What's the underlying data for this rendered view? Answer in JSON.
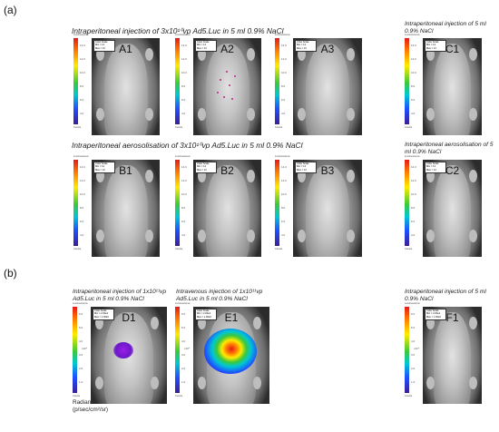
{
  "sections": {
    "a": "(a)",
    "b": "(b)"
  },
  "captions": {
    "a_row1": "Intraperitoneal injection of 3x10¹⁰vp Ad5.Luc in 5 ml 0.9% NaCl",
    "a_c1": "Intraperitoneal injection of 5 ml 0.9% NaCl",
    "a_row2": "Intraperitoneal aerosolisation of 3x10¹⁰vp Ad5.Luc in 5 ml 0.9% NaCl",
    "a_c2": "Intraperitoneal aerosolisation of 5 ml 0.9% NaCl",
    "b_d1": "Intraperitoneal injection of 1x10¹¹vp Ad5.Luc in 5 ml 0.9% NaCl",
    "b_e1": "Intravenous injection of 1x10¹¹vp Ad5.Luc in 5 ml 0.9% NaCl",
    "b_f1": "Intraperitoneal injection of 5 ml 0.9% NaCl"
  },
  "panels": {
    "A1": {
      "label": "A1"
    },
    "A2": {
      "label": "A2"
    },
    "A3": {
      "label": "A3"
    },
    "C1": {
      "label": "C1"
    },
    "B1": {
      "label": "B1"
    },
    "B2": {
      "label": "B2"
    },
    "B3": {
      "label": "B3"
    },
    "C2": {
      "label": "C2"
    },
    "D1": {
      "label": "D1"
    },
    "E1": {
      "label": "E1"
    },
    "F1": {
      "label": "F1"
    }
  },
  "colorbar": {
    "title": "Luminescence",
    "bottom": "Counts",
    "a_ticks": [
      "14.0",
      "12.0",
      "10.0",
      "8.0",
      "6.0",
      "4.0"
    ],
    "b_ticks": [
      "6.0",
      "5.0",
      "4.0",
      "3.0",
      "2.0",
      "1.0"
    ],
    "b_unit": "x10⁶",
    "colors": [
      "#e31a1c",
      "#ff7f00",
      "#ffeb00",
      "#3cc83c",
      "#00c8d2",
      "#1e50ff",
      "#3a1e96"
    ]
  },
  "scale_box": {
    "l1": "Color Scale",
    "l2": "Min = 12",
    "l3": "Max = 13"
  },
  "scale_box_b": {
    "l1": "Color Scale",
    "l2": "Min = 2.00e4",
    "l3": "Max = 1.00e6"
  },
  "radiance": "Radiance\n(p/sec/cm²/sr)"
}
